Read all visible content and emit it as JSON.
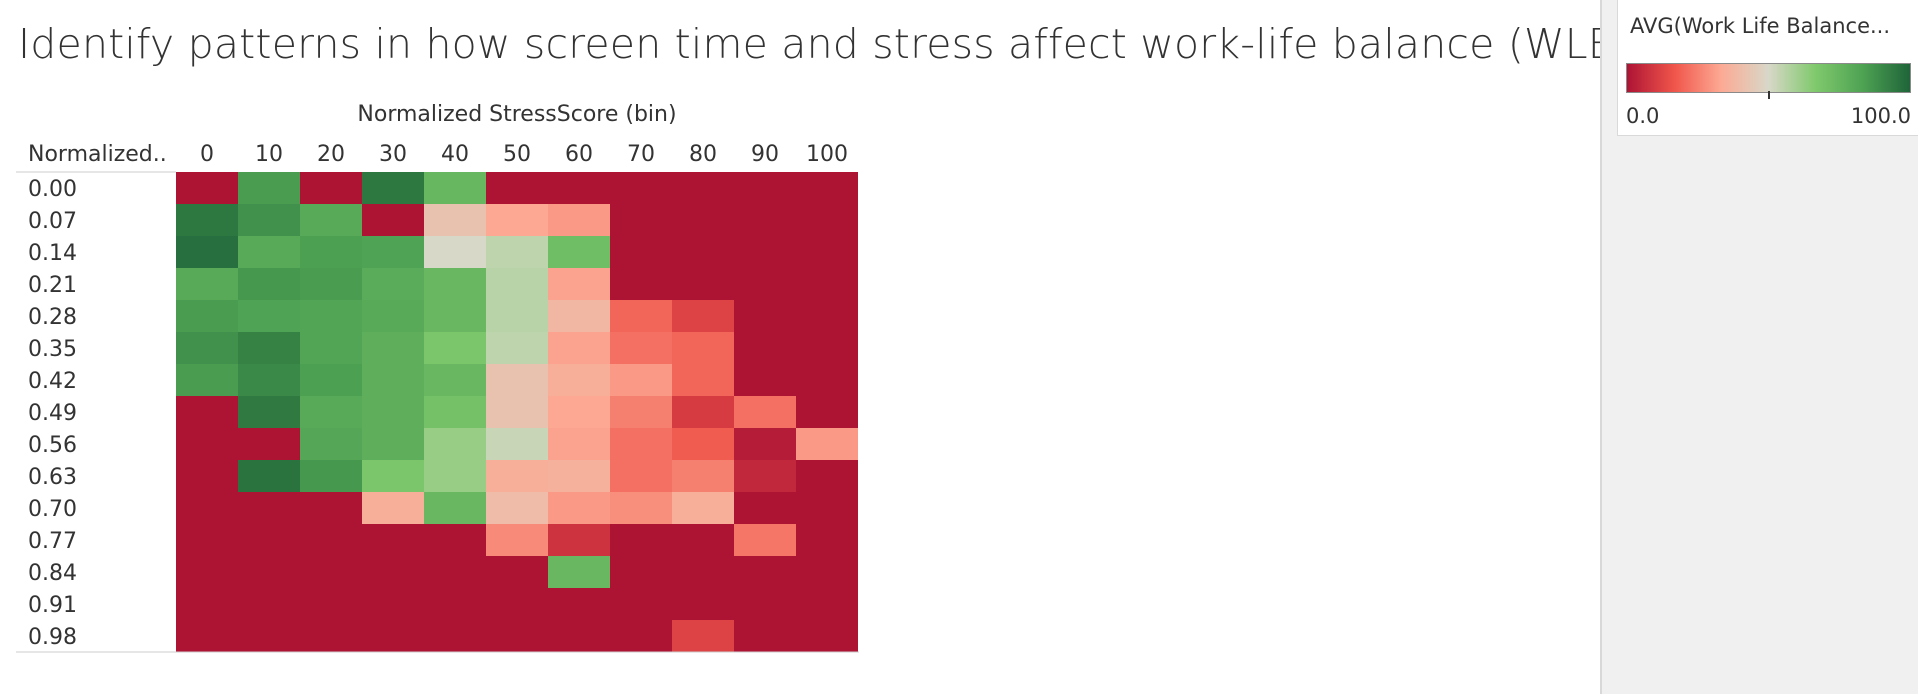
{
  "title": "Identify patterns in how screen time and stress affect work-life balance (WLB)",
  "chart_data": {
    "type": "heatmap",
    "xlabel": "Normalized StressScore (bin)",
    "ylabel": "Normalized..",
    "x_categories": [
      "0",
      "10",
      "20",
      "30",
      "40",
      "50",
      "60",
      "70",
      "80",
      "90",
      "100"
    ],
    "y_categories": [
      "0.00",
      "0.07",
      "0.14",
      "0.21",
      "0.28",
      "0.35",
      "0.42",
      "0.49",
      "0.56",
      "0.63",
      "0.70",
      "0.77",
      "0.84",
      "0.91",
      "0.98"
    ],
    "values": [
      [
        0,
        85,
        0,
        95,
        75,
        0,
        0,
        0,
        0,
        0,
        0
      ],
      [
        95,
        88,
        80,
        0,
        42,
        33,
        30,
        0,
        0,
        0,
        0
      ],
      [
        97,
        80,
        84,
        83,
        50,
        55,
        72,
        0,
        0,
        0,
        0
      ],
      [
        80,
        86,
        85,
        79,
        74,
        56,
        32,
        0,
        0,
        0,
        0
      ],
      [
        85,
        83,
        82,
        80,
        74,
        56,
        38,
        20,
        12,
        0,
        0
      ],
      [
        88,
        92,
        82,
        78,
        68,
        55,
        32,
        22,
        20,
        0,
        0
      ],
      [
        85,
        90,
        84,
        78,
        74,
        42,
        35,
        30,
        20,
        0,
        0
      ],
      [
        0,
        94,
        80,
        78,
        70,
        42,
        33,
        25,
        10,
        22,
        0
      ],
      [
        0,
        0,
        81,
        78,
        62,
        53,
        32,
        22,
        18,
        2,
        30
      ],
      [
        0,
        96,
        86,
        68,
        62,
        35,
        36,
        22,
        25,
        5,
        0
      ],
      [
        0,
        0,
        0,
        35,
        74,
        40,
        30,
        28,
        35,
        0,
        0
      ],
      [
        0,
        0,
        0,
        0,
        0,
        27,
        8,
        0,
        0,
        23,
        0
      ],
      [
        0,
        0,
        0,
        0,
        0,
        0,
        74,
        0,
        0,
        0,
        0
      ],
      [
        0,
        0,
        0,
        0,
        0,
        0,
        0,
        0,
        0,
        0,
        0
      ],
      [
        0,
        0,
        0,
        0,
        0,
        0,
        0,
        0,
        12,
        0,
        0
      ]
    ],
    "color_range": [
      0,
      100
    ],
    "color_stops": [
      "#ad1434",
      "#f0554a",
      "#fcaa94",
      "#d8d8c8",
      "#7fc96c",
      "#4ea253",
      "#1f6439"
    ],
    "legend": {
      "title": "AVG(Work Life Balance...",
      "min_label": "0.0",
      "max_label": "100.0",
      "midpoint": 50,
      "position": "top-right"
    }
  }
}
